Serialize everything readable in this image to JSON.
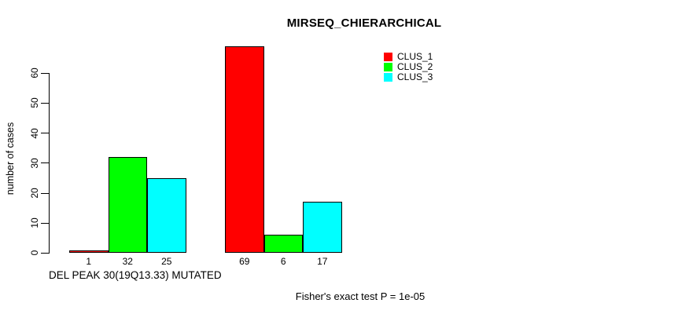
{
  "chart_data": {
    "type": "bar",
    "title": "MIRSEQ_CHIERARCHICAL",
    "xlabel": "DEL PEAK 30(19Q13.33) MUTATED",
    "ylabel": "number of cases",
    "ylim": [
      0,
      69
    ],
    "yticks": [
      0,
      10,
      20,
      30,
      40,
      50,
      60
    ],
    "grid": false,
    "legend_position": "top-right",
    "group_count": 2,
    "series": [
      {
        "name": "CLUS_1",
        "color": "#ff0000",
        "values": [
          1,
          69
        ]
      },
      {
        "name": "CLUS_2",
        "color": "#00ff00",
        "values": [
          32,
          6
        ]
      },
      {
        "name": "CLUS_3",
        "color": "#00ffff",
        "values": [
          25,
          17
        ]
      }
    ],
    "bar_value_labels": [
      1,
      32,
      25,
      69,
      6,
      17
    ],
    "annotation": "Fisher's exact test P = 1e-05",
    "background_color": "#ffffff",
    "axis_color": "#000000"
  }
}
